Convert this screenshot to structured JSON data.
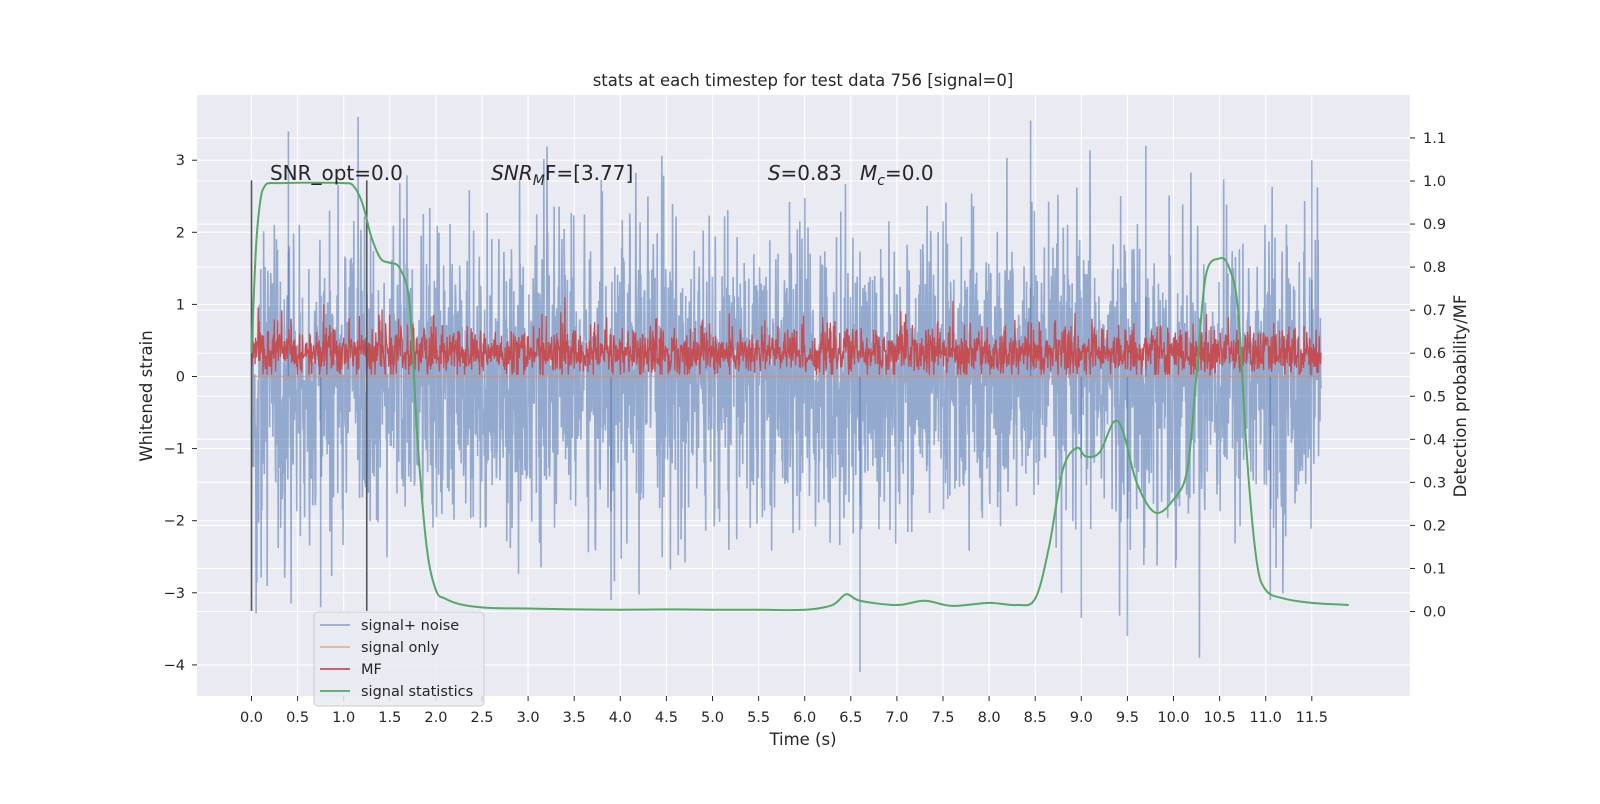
{
  "chart_data": {
    "type": "line",
    "title": "stats at each timestep for test data 756 [signal=0]",
    "xlabel": "Time (s)",
    "ylabel": "Whitened strain",
    "ylabel_right": "Detection probability/MF",
    "xlim": [
      -0.59,
      12.59
    ],
    "ylim": [
      -4.45,
      3.9
    ],
    "ylim_right": [
      -0.2,
      1.2
    ],
    "x_ticks": [
      "0.0",
      "0.5",
      "1.0",
      "1.5",
      "2.0",
      "2.5",
      "3.0",
      "3.5",
      "4.0",
      "4.5",
      "5.0",
      "5.5",
      "6.0",
      "6.5",
      "7.0",
      "7.5",
      "8.0",
      "8.5",
      "9.0",
      "9.5",
      "10.0",
      "10.5",
      "11.0",
      "11.5"
    ],
    "y_ticks_left": [
      "−4",
      "−3",
      "−2",
      "−1",
      "0",
      "1",
      "2",
      "3"
    ],
    "y_ticks_right": [
      "0.0",
      "0.1",
      "0.2",
      "0.3",
      "0.4",
      "0.5",
      "0.6",
      "0.7",
      "0.8",
      "0.9",
      "1.0",
      "1.1"
    ],
    "grid": true,
    "legend_position": "lower-left",
    "series": [
      {
        "name": "signal+ noise",
        "color": "#4c72b0",
        "axis": "left",
        "x_range": [
          0,
          11.6
        ],
        "description_values": "noise band roughly −2.5 to 2.5 with spikes to ±3.5"
      },
      {
        "name": "signal only",
        "color": "#dd8452",
        "axis": "left",
        "x_range": [
          0,
          11.6
        ],
        "values": [
          0,
          0
        ]
      },
      {
        "name": "MF",
        "color": "#c44e52",
        "axis": "right",
        "x_range": [
          0,
          11.6
        ],
        "values": [
          0.6,
          0.6
        ]
      },
      {
        "name": "signal statistics",
        "color": "#55a868",
        "axis": "right",
        "x": [
          0.0,
          0.05,
          0.1,
          0.15,
          0.2,
          0.3,
          0.5,
          0.8,
          1.0,
          1.1,
          1.2,
          1.3,
          1.4,
          1.5,
          1.6,
          1.7,
          1.75,
          1.8,
          1.9,
          2.0,
          2.1,
          2.3,
          2.6,
          3.0,
          3.5,
          4.0,
          4.5,
          5.0,
          5.5,
          6.0,
          6.3,
          6.45,
          6.6,
          7.0,
          7.3,
          7.6,
          8.0,
          8.3,
          8.5,
          8.65,
          8.8,
          8.95,
          9.05,
          9.2,
          9.35,
          9.45,
          9.6,
          9.8,
          10.0,
          10.15,
          10.25,
          10.35,
          10.5,
          10.6,
          10.7,
          10.8,
          10.9,
          11.0,
          11.2,
          11.5,
          11.9
        ],
        "values": [
          0.6,
          0.85,
          0.96,
          0.99,
          0.995,
          0.995,
          0.996,
          0.996,
          0.995,
          0.99,
          0.95,
          0.87,
          0.82,
          0.81,
          0.8,
          0.74,
          0.6,
          0.4,
          0.15,
          0.05,
          0.03,
          0.015,
          0.008,
          0.007,
          0.005,
          0.004,
          0.005,
          0.004,
          0.004,
          0.004,
          0.015,
          0.04,
          0.025,
          0.015,
          0.025,
          0.013,
          0.02,
          0.015,
          0.03,
          0.15,
          0.33,
          0.38,
          0.36,
          0.37,
          0.44,
          0.42,
          0.3,
          0.23,
          0.26,
          0.33,
          0.55,
          0.78,
          0.82,
          0.8,
          0.7,
          0.35,
          0.12,
          0.05,
          0.03,
          0.02,
          0.015
        ]
      }
    ],
    "vertical_markers": [
      0.0,
      1.25
    ],
    "annotations": [
      {
        "text": "SNR_opt=0.0",
        "x": 0.2,
        "y": 1.0,
        "italic": false
      },
      {
        "text": "SNR",
        "sub": "M",
        "tail": "F=[3.77]",
        "x": 2.6,
        "y": 1.0,
        "italic_part": "SNR"
      },
      {
        "text": "S",
        "tail": "=0.83",
        "x": 5.6,
        "y": 1.0,
        "italic_part": "S"
      },
      {
        "text": "M",
        "sub": "c",
        "tail": "=0.0",
        "x": 6.6,
        "y": 1.0,
        "italic_part": "M"
      }
    ]
  },
  "colors": {
    "plot_background": "#eaeaf2",
    "grid": "#ffffff"
  }
}
